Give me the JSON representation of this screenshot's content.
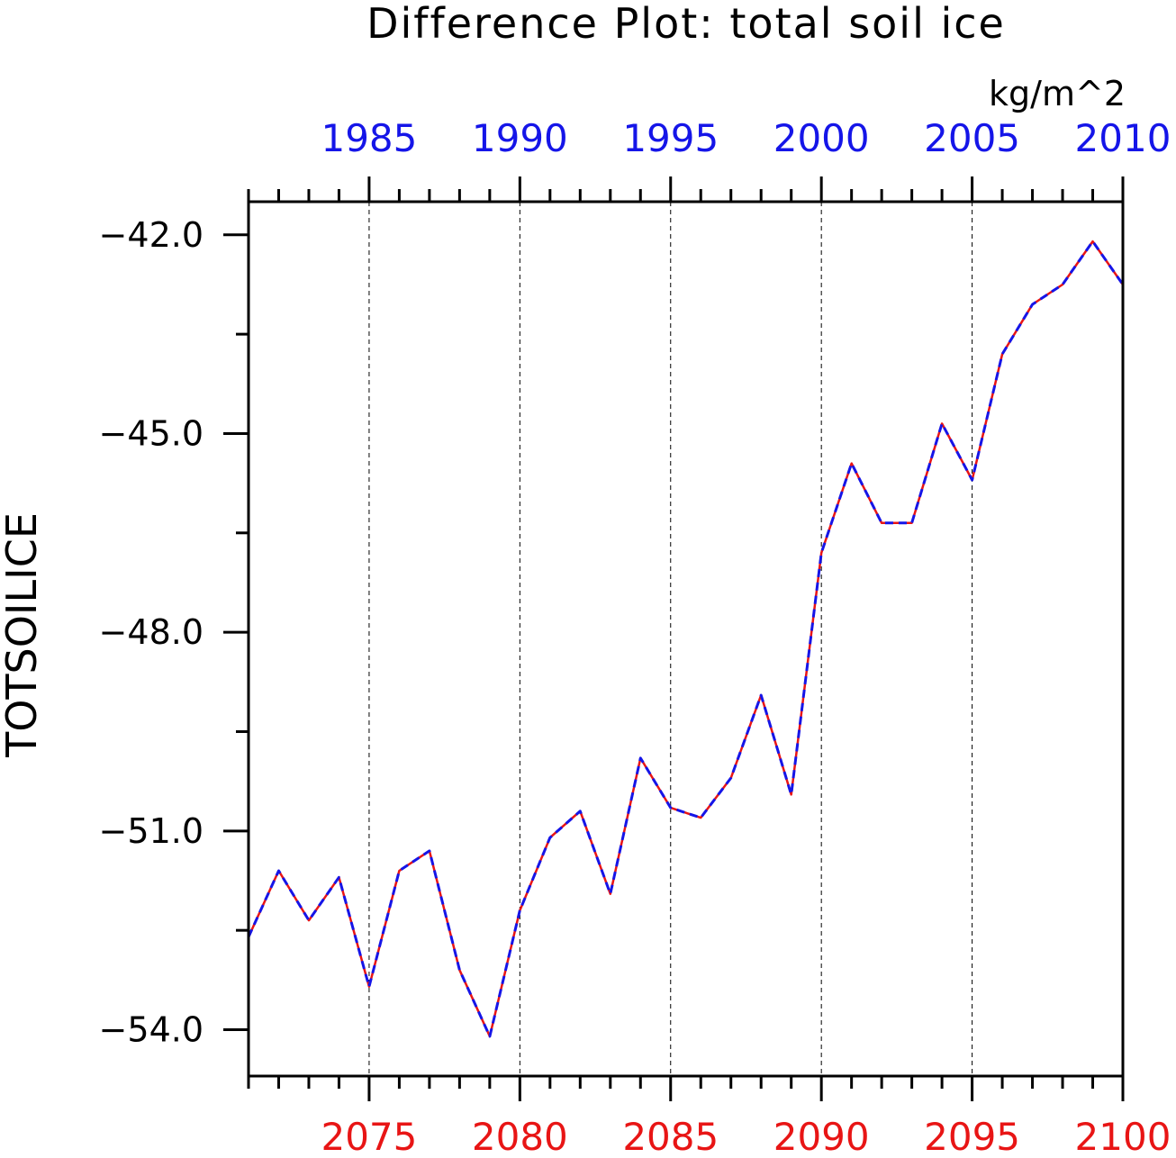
{
  "chart_data": {
    "type": "line",
    "title": "Difference Plot: total soil ice",
    "units": "kg/m^2",
    "ylabel": "TOTSOILICE",
    "ylim": [
      -54.7,
      -41.5
    ],
    "yticks": [
      -42.0,
      -45.0,
      -48.0,
      -51.0,
      -54.0
    ],
    "yticks_labeled": [
      "−42.0",
      "−45.0",
      "−48.0",
      "−51.0",
      "−54.0"
    ],
    "grid": "vertical dashed lines at labeled years",
    "x_top": {
      "color": "#1515e8",
      "range": [
        1981,
        2010
      ],
      "ticks": [
        "1985",
        "1990",
        "1995",
        "2000",
        "2005",
        "2010"
      ]
    },
    "x_bottom": {
      "color": "#e81515",
      "range": [
        2071,
        2100
      ],
      "ticks": [
        "2075",
        "2080",
        "2085",
        "2090",
        "2095",
        "2100"
      ]
    },
    "x": [
      2071,
      2072,
      2073,
      2074,
      2075,
      2076,
      2077,
      2078,
      2079,
      2080,
      2081,
      2082,
      2083,
      2084,
      2085,
      2086,
      2087,
      2088,
      2089,
      2090,
      2091,
      2092,
      2093,
      2094,
      2095,
      2096,
      2097,
      2098,
      2099,
      2100
    ],
    "series": [
      {
        "color": "#e81515",
        "style": "solid",
        "values": [
          -52.6,
          -51.6,
          -52.35,
          -51.7,
          -53.35,
          -51.6,
          -51.3,
          -53.1,
          -54.1,
          -52.2,
          -51.1,
          -50.7,
          -51.95,
          -49.9,
          -50.65,
          -50.8,
          -50.2,
          -48.95,
          -50.45,
          -46.8,
          -45.45,
          -46.35,
          -46.35,
          -44.85,
          -45.7,
          -43.8,
          -43.05,
          -42.75,
          -42.1,
          -42.75
        ]
      },
      {
        "color": "#1515e8",
        "style": "dashed",
        "values": [
          -52.6,
          -51.6,
          -52.35,
          -51.7,
          -53.35,
          -51.6,
          -51.3,
          -53.1,
          -54.1,
          -52.2,
          -51.1,
          -50.7,
          -51.95,
          -49.9,
          -50.65,
          -50.8,
          -50.2,
          -48.95,
          -50.45,
          -46.8,
          -45.45,
          -46.35,
          -46.35,
          -44.85,
          -45.7,
          -43.8,
          -43.05,
          -42.75,
          -42.1,
          -42.75
        ]
      }
    ]
  }
}
